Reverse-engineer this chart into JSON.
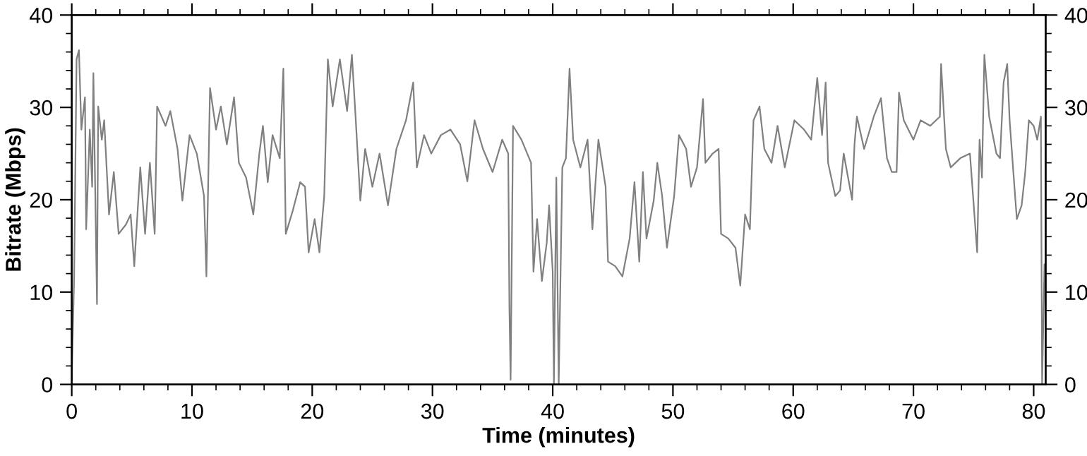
{
  "chart_data": {
    "type": "line",
    "xlabel": "Time (minutes)",
    "ylabel": "Bitrate (Mbps)",
    "xlim": [
      0,
      81
    ],
    "xticks": [
      0,
      10,
      20,
      30,
      40,
      50,
      60,
      70,
      80
    ],
    "ylim": [
      0,
      40
    ],
    "yticks": [
      0,
      10,
      20,
      30,
      40
    ],
    "y2lim": [
      0,
      40
    ],
    "y2ticks": [
      0,
      10,
      20,
      30,
      40
    ],
    "marker": "none",
    "line_style": "solid",
    "series": [
      {
        "color": "#808080",
        "x": [
          0,
          0.2,
          0.4,
          0.6,
          0.8,
          1.1,
          1.2,
          1.5,
          1.7,
          1.8,
          2.1,
          2.2,
          2.5,
          2.7,
          3.1,
          3.5,
          3.9,
          4.5,
          4.9,
          5.2,
          5.7,
          6.1,
          6.5,
          6.9,
          7.1,
          7.8,
          8.2,
          8.8,
          9.2,
          9.8,
          10.4,
          11,
          11.2,
          11.5,
          12,
          12.4,
          12.9,
          13.5,
          13.9,
          14.5,
          15.1,
          15.6,
          15.9,
          16.3,
          16.7,
          17.3,
          17.6,
          17.8,
          18.4,
          19,
          19.4,
          19.7,
          20.2,
          20.6,
          21,
          21.3,
          21.7,
          22.3,
          22.9,
          23.3,
          23.6,
          24,
          24.4,
          25,
          25.6,
          26.3,
          27,
          27.8,
          28.4,
          28.7,
          29.3,
          29.9,
          30.7,
          31.5,
          32.3,
          32.9,
          33.5,
          34.2,
          35,
          35.8,
          36.3,
          36.4,
          36.5,
          36.7,
          37.4,
          38.2,
          38.4,
          38.7,
          39.1,
          39.5,
          39.7,
          40,
          40.1,
          40.3,
          40.5,
          40.8,
          41.1,
          41.4,
          41.7,
          42.3,
          42.9,
          43.3,
          43.8,
          44.4,
          44.6,
          45.2,
          45.8,
          46.4,
          46.8,
          47.2,
          47.5,
          47.8,
          48.4,
          48.7,
          49.1,
          49.5,
          50.1,
          50.5,
          51.1,
          51.5,
          52,
          52.5,
          52.7,
          53.3,
          53.8,
          54,
          54.6,
          55.2,
          55.6,
          56,
          56.4,
          56.7,
          57.2,
          57.6,
          58.2,
          58.7,
          59.3,
          60.1,
          60.9,
          61.5,
          62,
          62.4,
          62.7,
          62.9,
          63.5,
          63.9,
          64.2,
          64.9,
          65.1,
          65.3,
          65.9,
          66.7,
          67.3,
          67.8,
          68.2,
          68.6,
          68.8,
          69.2,
          70,
          70.6,
          71.4,
          72.2,
          72.3,
          72.7,
          73.1,
          73.9,
          74.7,
          75.3,
          75.5,
          75.7,
          75.9,
          76.3,
          76.9,
          77.2,
          77.5,
          77.8,
          78,
          78.4,
          78.6,
          79,
          79.3,
          79.6,
          80,
          80.3,
          80.6,
          80.7,
          80.9
        ],
        "values": [
          0.5,
          11.7,
          35.2,
          36.2,
          27.6,
          31.1,
          16.8,
          27.6,
          21.4,
          33.7,
          8.7,
          30.1,
          26.5,
          28.6,
          18.4,
          23,
          16.3,
          17.3,
          18.4,
          12.8,
          23.5,
          16.3,
          24,
          16.3,
          30.1,
          28,
          29.6,
          25.5,
          19.9,
          27,
          25,
          20.4,
          11.7,
          32.1,
          27.6,
          30.1,
          26,
          31.1,
          24,
          22.4,
          18.4,
          25,
          28,
          21.9,
          27,
          24.5,
          34.2,
          16.3,
          18.9,
          21.9,
          21.4,
          14.3,
          17.9,
          14.3,
          20.4,
          35.2,
          30.1,
          35.2,
          29.6,
          35.7,
          29.1,
          19.9,
          25.5,
          21.4,
          25,
          19.4,
          25.5,
          28.6,
          32.7,
          23.5,
          27,
          25,
          27,
          27.6,
          26,
          22,
          28.6,
          25.5,
          23,
          26.5,
          25,
          8.2,
          0.5,
          28,
          26.5,
          24,
          12.2,
          17.9,
          11.2,
          15.3,
          19.4,
          12.2,
          0,
          22.4,
          0,
          23.5,
          24.5,
          34.2,
          26.5,
          23.5,
          26.5,
          16.8,
          26.5,
          21.4,
          13.3,
          12.8,
          11.7,
          15.8,
          21.9,
          13.3,
          23,
          15.8,
          19.9,
          24,
          20.4,
          14.8,
          20.4,
          27,
          25.5,
          21.4,
          23.5,
          30.9,
          24,
          25,
          25.5,
          16.3,
          15.8,
          14.8,
          10.7,
          18.4,
          16.8,
          28.6,
          30.1,
          25.5,
          24,
          28,
          23.5,
          28.6,
          27.6,
          26.5,
          33.2,
          27,
          32.7,
          24,
          20.4,
          21,
          25,
          20,
          26,
          29,
          25.5,
          29,
          31,
          24.5,
          23,
          23,
          31.6,
          28.6,
          26.5,
          28.6,
          28,
          29,
          34.7,
          25.5,
          23.5,
          24.5,
          25,
          14.3,
          26.5,
          22.4,
          35.7,
          29,
          25,
          24.5,
          32.7,
          34.7,
          28.6,
          21.4,
          17.9,
          19.4,
          23,
          28.6,
          28,
          26.5,
          29,
          0,
          13
        ]
      }
    ]
  }
}
